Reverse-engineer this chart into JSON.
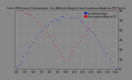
{
  "title": "Solar PV/Inverter Performance  Sun Altitude Angle & Sun Incidence Angle on PV Panels",
  "legend_labels": [
    "Sun Altitude Angle",
    "Sun Incidence Angle on PV"
  ],
  "legend_colors": [
    "#0000dd",
    "#dd0000"
  ],
  "bg_color": "#888888",
  "plot_bg": "#888888",
  "grid_color": "#aaaaaa",
  "ylim": [
    0,
    90
  ],
  "ytick_values": [
    0,
    15,
    30,
    45,
    60,
    75,
    90
  ],
  "num_points": 48,
  "alt_peak": 80,
  "inc_min": 10
}
